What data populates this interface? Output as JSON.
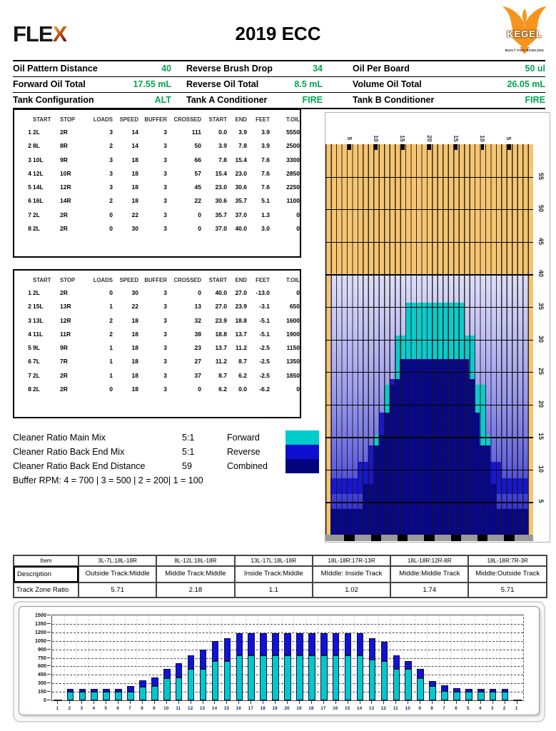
{
  "header": {
    "brand": "FLE",
    "brand_x": "X",
    "title": "2019 ECC",
    "kegel_text": "KEGEL",
    "kegel_tagline": "BUILT FOR BOWLING"
  },
  "info_table": {
    "rows": [
      [
        {
          "label": "Oil Pattern Distance",
          "value": "40"
        },
        {
          "label": "Reverse Brush Drop",
          "value": "34"
        },
        {
          "label": "Oil Per Board",
          "value": "50 ul"
        }
      ],
      [
        {
          "label": "Forward Oil Total",
          "value": "17.55 mL"
        },
        {
          "label": "Reverse Oil Total",
          "value": "8.5 mL"
        },
        {
          "label": "Volume Oil Total",
          "value": "26.05 mL"
        }
      ],
      [
        {
          "label": "Tank Configuration",
          "value": "ALT"
        },
        {
          "label": "Tank A Conditioner",
          "value": "FIRE"
        },
        {
          "label": "Tank B Conditioner",
          "value": "FIRE"
        }
      ]
    ],
    "value_color": "#00A650"
  },
  "load_table_headers": [
    "START",
    "STOP",
    "LOADS",
    "SPEED",
    "BUFFER",
    "CROSSED",
    "START",
    "END",
    "FEET",
    "T.OIL"
  ],
  "forward_table": {
    "rows": [
      [
        "1",
        "2L",
        "2R",
        "3",
        "14",
        "3",
        "111",
        "0.0",
        "3.9",
        "3.9",
        "5550"
      ],
      [
        "2",
        "8L",
        "8R",
        "2",
        "14",
        "3",
        "50",
        "3.9",
        "7.8",
        "3.9",
        "2500"
      ],
      [
        "3",
        "10L",
        "9R",
        "3",
        "18",
        "3",
        "66",
        "7.8",
        "15.4",
        "7.6",
        "3300"
      ],
      [
        "4",
        "12L",
        "10R",
        "3",
        "18",
        "3",
        "57",
        "15.4",
        "23.0",
        "7.6",
        "2850"
      ],
      [
        "5",
        "14L",
        "12R",
        "3",
        "18",
        "3",
        "45",
        "23.0",
        "30.6",
        "7.6",
        "2250"
      ],
      [
        "6",
        "16L",
        "14R",
        "2",
        "18",
        "3",
        "22",
        "30.6",
        "35.7",
        "5.1",
        "1100"
      ],
      [
        "7",
        "2L",
        "2R",
        "0",
        "22",
        "3",
        "0",
        "35.7",
        "37.0",
        "1.3",
        "0"
      ],
      [
        "8",
        "2L",
        "2R",
        "0",
        "30",
        "3",
        "0",
        "37.0",
        "40.0",
        "3.0",
        "0"
      ]
    ]
  },
  "reverse_table": {
    "rows": [
      [
        "1",
        "2L",
        "2R",
        "0",
        "30",
        "3",
        "0",
        "40.0",
        "27.0",
        "-13.0",
        "0"
      ],
      [
        "2",
        "15L",
        "13R",
        "1",
        "22",
        "3",
        "13",
        "27.0",
        "23.9",
        "-3.1",
        "650"
      ],
      [
        "3",
        "13L",
        "12R",
        "2",
        "18",
        "3",
        "32",
        "23.9",
        "18.8",
        "-5.1",
        "1600"
      ],
      [
        "4",
        "11L",
        "11R",
        "2",
        "18",
        "3",
        "38",
        "18.8",
        "13.7",
        "-5.1",
        "1900"
      ],
      [
        "5",
        "9L",
        "9R",
        "1",
        "18",
        "3",
        "23",
        "13.7",
        "11.2",
        "-2.5",
        "1150"
      ],
      [
        "6",
        "7L",
        "7R",
        "1",
        "18",
        "3",
        "27",
        "11.2",
        "8.7",
        "-2.5",
        "1350"
      ],
      [
        "7",
        "2L",
        "2R",
        "1",
        "18",
        "3",
        "37",
        "8.7",
        "6.2",
        "-2.5",
        "1850"
      ],
      [
        "8",
        "2L",
        "2R",
        "0",
        "18",
        "3",
        "0",
        "6.2",
        "0.0",
        "-6.2",
        "0"
      ]
    ]
  },
  "cleaner": {
    "rows": [
      {
        "label": "Cleaner Ratio Main Mix",
        "value": "5:1"
      },
      {
        "label": "Cleaner Ratio Back End Mix",
        "value": "5:1"
      },
      {
        "label": "Cleaner Ratio Back End Distance",
        "value": "59"
      }
    ],
    "note": "Buffer RPM: 4 = 700 | 3 = 500 | 2 = 200| 1 = 100"
  },
  "legend": {
    "items": [
      {
        "label": "Forward",
        "color": "#00CCCC"
      },
      {
        "label": "Reverse",
        "color": "#0F0FD2"
      },
      {
        "label": "Combined",
        "color": "#03037E"
      }
    ]
  },
  "lane": {
    "boards": 39,
    "length_ft": 60,
    "oil_end_ft": 40,
    "oil_board_start": 2,
    "oil_board_end": 38,
    "wood_color": "#F5C572",
    "colors": {
      "F": "#0BCBCB",
      "R": "#1717D0",
      "C": "#07078E"
    },
    "marker_boards": [
      5,
      10,
      15,
      20,
      25,
      30,
      35
    ],
    "top_labels": [
      {
        "board": 5,
        "text": "5"
      },
      {
        "board": 10,
        "text": "10"
      },
      {
        "board": 15,
        "text": "15"
      },
      {
        "board": 20,
        "text": "20"
      },
      {
        "board": 25,
        "text": "15"
      },
      {
        "board": 30,
        "text": "10"
      },
      {
        "board": 35,
        "text": "5"
      }
    ],
    "distance_labels": [
      {
        "ft": 55,
        "text": "55"
      },
      {
        "ft": 50,
        "text": "50"
      },
      {
        "ft": 45,
        "text": "45"
      },
      {
        "ft": 40,
        "text": "40"
      },
      {
        "ft": 35,
        "text": "35"
      },
      {
        "ft": 30,
        "text": "30"
      },
      {
        "ft": 25,
        "text": "25"
      },
      {
        "ft": 20,
        "text": "20"
      },
      {
        "ft": 15,
        "text": "15"
      },
      {
        "ft": 10,
        "text": "10"
      },
      {
        "ft": 5,
        "text": "5"
      }
    ],
    "zones": [
      {
        "from": 30.6,
        "to": 35.7,
        "segs": [
          [
            16,
            26,
            "F"
          ]
        ]
      },
      {
        "from": 27.0,
        "to": 30.6,
        "segs": [
          [
            14,
            28,
            "F"
          ]
        ]
      },
      {
        "from": 23.9,
        "to": 27.0,
        "segs": [
          [
            14,
            14,
            "F"
          ],
          [
            15,
            27,
            "C"
          ],
          [
            28,
            28,
            "F"
          ]
        ]
      },
      {
        "from": 23.0,
        "to": 23.9,
        "segs": [
          [
            13,
            13,
            "R"
          ],
          [
            14,
            28,
            "C"
          ]
        ]
      },
      {
        "from": 18.8,
        "to": 23.0,
        "segs": [
          [
            12,
            12,
            "F"
          ],
          [
            13,
            28,
            "C"
          ],
          [
            29,
            30,
            "F"
          ]
        ]
      },
      {
        "from": 15.4,
        "to": 18.8,
        "segs": [
          [
            11,
            11,
            "R"
          ],
          [
            12,
            29,
            "C"
          ],
          [
            30,
            30,
            "F"
          ]
        ]
      },
      {
        "from": 13.7,
        "to": 15.4,
        "segs": [
          [
            10,
            10,
            "F"
          ],
          [
            11,
            29,
            "C"
          ],
          [
            30,
            31,
            "F"
          ]
        ]
      },
      {
        "from": 11.2,
        "to": 13.7,
        "segs": [
          [
            9,
            9,
            "R"
          ],
          [
            10,
            31,
            "C"
          ]
        ]
      },
      {
        "from": 8.7,
        "to": 11.2,
        "segs": [
          [
            7,
            9,
            "R"
          ],
          [
            10,
            31,
            "C"
          ],
          [
            32,
            33,
            "R"
          ]
        ]
      },
      {
        "from": 7.8,
        "to": 8.7,
        "segs": [
          [
            2,
            9,
            "R"
          ],
          [
            10,
            31,
            "C"
          ],
          [
            32,
            38,
            "R"
          ]
        ]
      },
      {
        "from": 6.2,
        "to": 7.8,
        "segs": [
          [
            2,
            7,
            "R"
          ],
          [
            8,
            32,
            "C"
          ],
          [
            33,
            38,
            "R"
          ]
        ]
      },
      {
        "from": 3.9,
        "to": 6.2,
        "segs": [
          [
            8,
            32,
            "C"
          ]
        ]
      },
      {
        "from": 0,
        "to": 3.9,
        "segs": [
          [
            2,
            38,
            "C"
          ]
        ]
      }
    ]
  },
  "summary_table": {
    "corner": "Item",
    "items": [
      "3L-7L:18L-18R",
      "8L-12L:18L-18R",
      "13L-17L:18L-18R",
      "18L-18R:17R-13R",
      "18L-18R:12R-8R",
      "18L-18R:7R-3R"
    ],
    "desc_label": "Description",
    "descriptions": [
      "Outside Track:Middle",
      "Middle Track:Middle",
      "Inside Track:Middle",
      "MIddle: Inside Track",
      "Middle:Middle Track",
      "Middle:Outside Track"
    ],
    "ratio_label": "Track Zone Ratio",
    "ratios": [
      "5.71",
      "2.18",
      "1.1",
      "1.02",
      "1.74",
      "5.71"
    ]
  },
  "chart_data": {
    "type": "bar",
    "stacked": true,
    "title": "",
    "xlabel": "",
    "ylabel": "",
    "ylim": [
      0,
      1500
    ],
    "ytick_step": 150,
    "grid": "dashed",
    "legend_position": "none",
    "x_labels": [
      "1",
      "2",
      "3",
      "4",
      "5",
      "6",
      "7",
      "8",
      "9",
      "10",
      "11",
      "12",
      "13",
      "14",
      "15",
      "16",
      "17",
      "18",
      "19",
      "20",
      "19",
      "18",
      "17",
      "16",
      "15",
      "14",
      "13",
      "12",
      "11",
      "10",
      "9",
      "8",
      "7",
      "6",
      "5",
      "4",
      "3",
      "2",
      "1"
    ],
    "series": [
      {
        "name": "Forward",
        "color": "#00C9C9",
        "values": [
          0,
          150,
          150,
          150,
          150,
          150,
          150,
          245,
          250,
          395,
          400,
          550,
          550,
          695,
          695,
          800,
          800,
          800,
          800,
          800,
          800,
          800,
          800,
          800,
          800,
          800,
          720,
          695,
          555,
          555,
          390,
          250,
          165,
          150,
          150,
          150,
          150,
          150,
          0
        ]
      },
      {
        "name": "Reverse",
        "color": "#1212D6",
        "values": [
          0,
          50,
          50,
          50,
          50,
          50,
          100,
          105,
          150,
          155,
          250,
          250,
          340,
          355,
          400,
          390,
          390,
          390,
          390,
          390,
          390,
          390,
          390,
          390,
          390,
          390,
          380,
          345,
          245,
          135,
          160,
          95,
          95,
          60,
          50,
          50,
          50,
          50,
          0
        ]
      }
    ]
  }
}
